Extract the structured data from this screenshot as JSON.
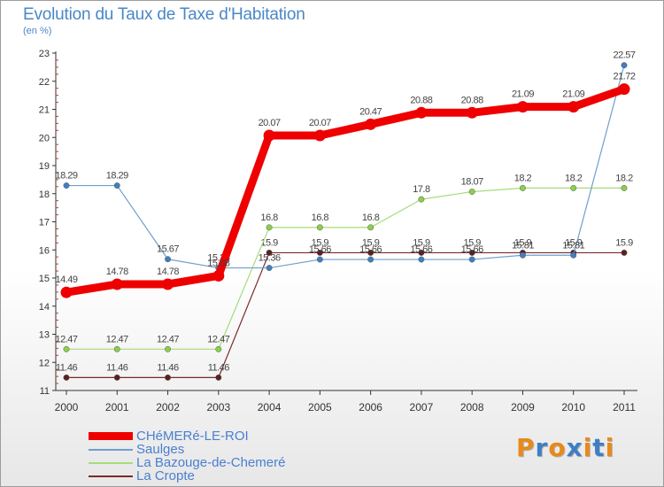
{
  "title": "Evolution du Taux de Taxe d'Habitation",
  "subtitle": "(en %)",
  "logo": {
    "text": "Proxiti",
    "colors": [
      "#e8891c",
      "#3d7fc6",
      "#e8891c",
      "#3d7fc6",
      "#e8891c",
      "#3d7fc6",
      "#e8891c"
    ]
  },
  "chart_data": {
    "type": "line",
    "x": [
      "2000",
      "2001",
      "2002",
      "2003",
      "2004",
      "2005",
      "2006",
      "2007",
      "2008",
      "2009",
      "2010",
      "2011"
    ],
    "ylim": [
      11,
      23
    ],
    "yticks": [
      11,
      12,
      13,
      14,
      15,
      16,
      17,
      18,
      19,
      20,
      21,
      22,
      23
    ],
    "grid": false,
    "legend_position": "bottom-left",
    "series": [
      {
        "name": "La Cropte",
        "color": "#7a2a2a",
        "marker": "#5c1f1f",
        "values": [
          11.46,
          11.46,
          11.46,
          11.46,
          15.9,
          15.9,
          15.9,
          15.9,
          15.9,
          15.9,
          15.9,
          15.9
        ],
        "labels": [
          "11.46",
          "11.46",
          "11.46",
          "11.46",
          "15.9",
          "15.9",
          "15.9",
          "15.9",
          "15.9",
          "15.9",
          "15.9",
          "15.9"
        ]
      },
      {
        "name": "La Bazouge-de-Chemeré",
        "color": "#a6dc7a",
        "marker": "#8ad04a",
        "values": [
          12.47,
          12.47,
          12.47,
          12.47,
          16.8,
          16.8,
          16.8,
          17.8,
          18.07,
          18.2,
          18.2,
          18.2
        ],
        "labels": [
          "12.47",
          "12.47",
          "12.47",
          "12.47",
          "16.8",
          "16.8",
          "16.8",
          "17.8",
          "18.07",
          "18.2",
          "18.2",
          "18.2"
        ]
      },
      {
        "name": "Saulges",
        "color": "#6e9fcc",
        "marker": "#3f7fc0",
        "values": [
          18.29,
          18.29,
          15.67,
          15.36,
          15.36,
          15.66,
          15.66,
          15.66,
          15.66,
          15.81,
          15.81,
          22.57
        ],
        "labels": [
          "18.29",
          "18.29",
          "15.67",
          "15.36",
          "15.36",
          "15.66",
          "15.66",
          "15.66",
          "15.66",
          "15.81",
          "15.81",
          "22.57"
        ]
      },
      {
        "name": "CHéMERé-LE-ROI",
        "color": "#ee0000",
        "marker": "#ee0000",
        "values": [
          14.49,
          14.78,
          14.78,
          15.08,
          20.07,
          20.07,
          20.47,
          20.88,
          20.88,
          21.09,
          21.09,
          21.72
        ],
        "labels": [
          "14.49",
          "14.78",
          "14.78",
          "15.08",
          "20.07",
          "20.07",
          "20.47",
          "20.88",
          "20.88",
          "21.09",
          "21.09",
          "21.72"
        ]
      }
    ],
    "legend_order": [
      "CHéMERé-LE-ROI",
      "Saulges",
      "La Bazouge-de-Chemeré",
      "La Cropte"
    ]
  }
}
